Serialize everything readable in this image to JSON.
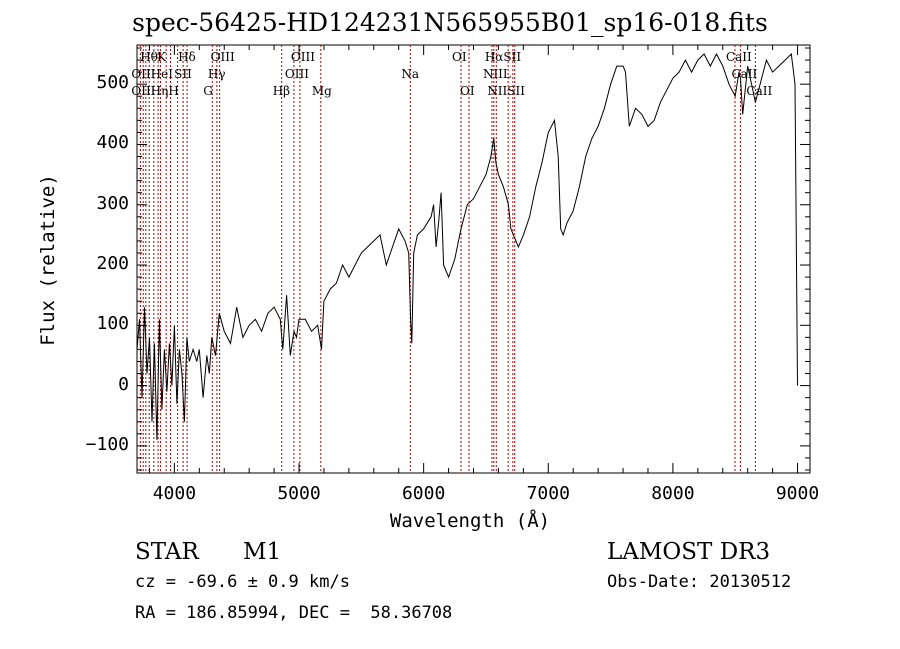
{
  "chart_data": {
    "type": "line",
    "title": "spec-56425-HD124231N565955B01_sp16-018.fits",
    "xlabel": "Wavelength (Å)",
    "ylabel": "Flux (relative)",
    "xlim": [
      3700,
      9100
    ],
    "ylim": [
      -145,
      565
    ],
    "xticks": [
      4000,
      5000,
      6000,
      7000,
      8000,
      9000
    ],
    "yticks": [
      -100,
      0,
      100,
      200,
      300,
      400,
      500
    ],
    "grid": false,
    "series": [
      {
        "name": "flux",
        "x": [
          3700,
          3720,
          3740,
          3760,
          3780,
          3800,
          3820,
          3840,
          3860,
          3880,
          3900,
          3920,
          3940,
          3960,
          3980,
          4000,
          4020,
          4040,
          4060,
          4080,
          4100,
          4120,
          4150,
          4180,
          4200,
          4230,
          4260,
          4280,
          4300,
          4330,
          4360,
          4400,
          4450,
          4500,
          4550,
          4600,
          4650,
          4700,
          4750,
          4800,
          4850,
          4870,
          4900,
          4930,
          4960,
          4980,
          5000,
          5050,
          5100,
          5150,
          5180,
          5200,
          5250,
          5300,
          5350,
          5400,
          5450,
          5500,
          5550,
          5600,
          5650,
          5700,
          5750,
          5800,
          5850,
          5880,
          5895,
          5905,
          5920,
          5950,
          6000,
          6030,
          6060,
          6080,
          6100,
          6120,
          6140,
          6160,
          6200,
          6250,
          6300,
          6350,
          6400,
          6450,
          6500,
          6540,
          6563,
          6580,
          6600,
          6640,
          6680,
          6700,
          6720,
          6740,
          6760,
          6800,
          6850,
          6900,
          6950,
          7000,
          7050,
          7080,
          7100,
          7120,
          7150,
          7200,
          7250,
          7300,
          7350,
          7400,
          7450,
          7500,
          7550,
          7600,
          7620,
          7650,
          7700,
          7750,
          7800,
          7850,
          7900,
          7950,
          8000,
          8050,
          8100,
          8150,
          8200,
          8250,
          8300,
          8350,
          8400,
          8450,
          8500,
          8530,
          8542,
          8560,
          8600,
          8662,
          8700,
          8750,
          8800,
          8850,
          8900,
          8950,
          8980,
          9000
        ],
        "values": [
          60,
          110,
          -20,
          130,
          20,
          80,
          -60,
          70,
          -90,
          110,
          -40,
          60,
          -10,
          70,
          0,
          100,
          -30,
          60,
          20,
          -60,
          80,
          40,
          60,
          40,
          60,
          -20,
          50,
          20,
          80,
          50,
          120,
          90,
          70,
          130,
          80,
          100,
          110,
          90,
          120,
          130,
          110,
          60,
          150,
          50,
          90,
          80,
          110,
          110,
          90,
          100,
          60,
          140,
          160,
          170,
          200,
          180,
          200,
          220,
          230,
          240,
          250,
          200,
          230,
          260,
          240,
          220,
          110,
          70,
          220,
          250,
          260,
          270,
          280,
          300,
          230,
          270,
          320,
          200,
          180,
          210,
          260,
          300,
          310,
          330,
          350,
          380,
          410,
          370,
          350,
          330,
          300,
          260,
          250,
          240,
          230,
          250,
          280,
          330,
          370,
          420,
          440,
          380,
          260,
          250,
          270,
          290,
          330,
          380,
          410,
          430,
          460,
          500,
          530,
          530,
          520,
          430,
          460,
          450,
          430,
          440,
          470,
          490,
          510,
          520,
          540,
          520,
          540,
          550,
          530,
          550,
          530,
          500,
          480,
          520,
          510,
          450,
          530,
          470,
          500,
          540,
          520,
          530,
          540,
          550,
          500,
          0
        ],
        "color": "#000000"
      }
    ],
    "reference_lines": {
      "wavelengths": [
        3727,
        3750,
        3771,
        3798,
        3835,
        3869,
        3889,
        3934,
        3969,
        4026,
        4070,
        4102,
        4304,
        4341,
        4363,
        4861,
        4959,
        5007,
        5175,
        5893,
        6300,
        6364,
        6548,
        6563,
        6583,
        6678,
        6716,
        6731,
        8498,
        8542,
        8662
      ],
      "color": "#b00000"
    },
    "line_labels": [
      {
        "text": "Hθ",
        "row": 1,
        "at": 3798
      },
      {
        "text": "K",
        "row": 1,
        "at": 3934
      },
      {
        "text": "Hδ",
        "row": 1,
        "at": 4102
      },
      {
        "text": "OIII",
        "row": 1,
        "at": 4363
      },
      {
        "text": "OIII",
        "row": 1,
        "at": 5007
      },
      {
        "text": "OI",
        "row": 1,
        "at": 6300
      },
      {
        "text": "HαSII",
        "row": 1,
        "at": 6563
      },
      {
        "text": "CaII",
        "row": 1,
        "at": 8498
      },
      {
        "text": "OIIHeI",
        "row": 2,
        "at": 3727
      },
      {
        "text": "SII",
        "row": 2,
        "at": 4070
      },
      {
        "text": "Hγ",
        "row": 2,
        "at": 4341
      },
      {
        "text": "OIII",
        "row": 2,
        "at": 4959
      },
      {
        "text": "Na",
        "row": 2,
        "at": 5893
      },
      {
        "text": "NIIL",
        "row": 2,
        "at": 6548
      },
      {
        "text": "CaII",
        "row": 2,
        "at": 8542
      },
      {
        "text": "OIIHηH",
        "row": 3,
        "at": 3727
      },
      {
        "text": "G",
        "row": 3,
        "at": 4304
      },
      {
        "text": "Hβ",
        "row": 3,
        "at": 4861
      },
      {
        "text": "Mg",
        "row": 3,
        "at": 5175
      },
      {
        "text": "OI",
        "row": 3,
        "at": 6364
      },
      {
        "text": "NIISII",
        "row": 3,
        "at": 6583
      },
      {
        "text": "CaII",
        "row": 3,
        "at": 8662
      }
    ]
  },
  "info": {
    "class_label": "STAR",
    "subclass": "M1",
    "survey": "LAMOST DR3",
    "cz": "cz = -69.6 ± 0.9 km/s",
    "obs_date": "Obs-Date: 20130512",
    "coords": "RA = 186.85994, DEC =  58.36708"
  }
}
